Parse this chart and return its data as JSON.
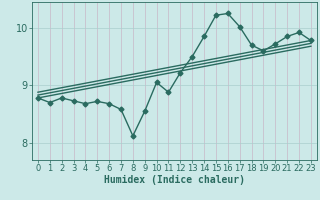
{
  "title": "",
  "xlabel": "Humidex (Indice chaleur)",
  "xlim": [
    -0.5,
    23.5
  ],
  "ylim": [
    7.7,
    10.45
  ],
  "xticks": [
    0,
    1,
    2,
    3,
    4,
    5,
    6,
    7,
    8,
    9,
    10,
    11,
    12,
    13,
    14,
    15,
    16,
    17,
    18,
    19,
    20,
    21,
    22,
    23
  ],
  "yticks": [
    8,
    9,
    10
  ],
  "bg_color": "#cce9e8",
  "grid_color": "#aacfce",
  "line_color": "#2a6b60",
  "main_x": [
    0,
    1,
    2,
    3,
    4,
    5,
    6,
    7,
    8,
    9,
    10,
    11,
    12,
    13,
    14,
    15,
    16,
    17,
    18,
    19,
    20,
    21,
    22,
    23
  ],
  "main_y": [
    8.78,
    8.7,
    8.78,
    8.73,
    8.68,
    8.72,
    8.68,
    8.58,
    8.12,
    8.55,
    9.05,
    8.88,
    9.22,
    9.5,
    9.85,
    10.22,
    10.25,
    10.02,
    9.7,
    9.6,
    9.72,
    9.85,
    9.92,
    9.78
  ],
  "reg_line1_x": [
    0,
    23
  ],
  "reg_line1_y": [
    8.78,
    9.68
  ],
  "reg_line2_x": [
    0,
    23
  ],
  "reg_line2_y": [
    8.88,
    9.78
  ],
  "reg_line3_x": [
    0,
    23
  ],
  "reg_line3_y": [
    8.83,
    9.73
  ],
  "marker_size": 2.5,
  "line_width": 1.0,
  "tick_fontsize": 6,
  "xlabel_fontsize": 7
}
